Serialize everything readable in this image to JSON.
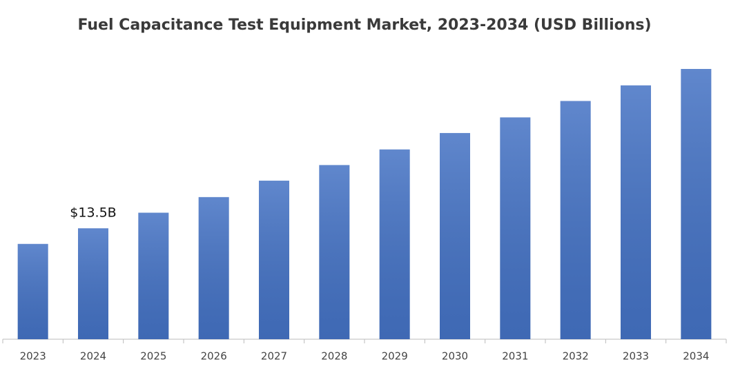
{
  "chart_data": {
    "type": "bar",
    "title": "Fuel Capacitance Test Equipment Market, 2023-2034 (USD Billions)",
    "categories": [
      "2023",
      "2024",
      "2025",
      "2026",
      "2027",
      "2028",
      "2029",
      "2030",
      "2031",
      "2032",
      "2033",
      "2034"
    ],
    "values": [
      11.6,
      13.5,
      15.4,
      17.3,
      19.3,
      21.2,
      23.1,
      25.1,
      27.0,
      29.0,
      30.9,
      32.9
    ],
    "value_labels": [
      null,
      "$13.5B",
      null,
      null,
      null,
      null,
      null,
      null,
      null,
      null,
      null,
      null
    ],
    "color": "#4472c4"
  }
}
